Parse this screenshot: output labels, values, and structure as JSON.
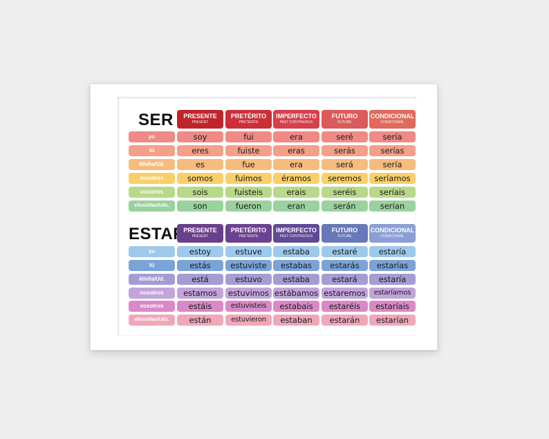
{
  "headers": [
    {
      "title": "PRESENTE",
      "sub": "PRESENT"
    },
    {
      "title": "PRETÉRITO",
      "sub": "PRETERITE"
    },
    {
      "title": "IMPERFECTO",
      "sub": "PAST CONTINUOUS"
    },
    {
      "title": "FUTURO",
      "sub": "FUTURE"
    },
    {
      "title": "CONDICIONAL",
      "sub": "CONDITIONAL"
    }
  ],
  "pronouns": [
    "yo",
    "tú",
    "él/ella/Ud.",
    "nosotros",
    "vosotros",
    "ellos/ellas/Uds."
  ],
  "ser": {
    "title": "SER",
    "header_colors": [
      "#c0242b",
      "#cc2f38",
      "#d7404a",
      "#dc5a5a",
      "#e06a5c"
    ],
    "row_colors": [
      "#ef8a86",
      "#f4a088",
      "#f7bb7e",
      "#f7d069",
      "#b7d98a",
      "#99d29c"
    ],
    "rows": [
      [
        "soy",
        "fui",
        "era",
        "seré",
        "sería"
      ],
      [
        "eres",
        "fuiste",
        "eras",
        "serás",
        "serías"
      ],
      [
        "es",
        "fue",
        "era",
        "será",
        "sería"
      ],
      [
        "somos",
        "fuimos",
        "éramos",
        "seremos",
        "seríamos"
      ],
      [
        "sois",
        "fuisteis",
        "erais",
        "seréis",
        "seríais"
      ],
      [
        "son",
        "fueron",
        "eran",
        "serán",
        "serían"
      ]
    ]
  },
  "estar": {
    "title": "ESTAR",
    "header_colors": [
      "#6a3f8c",
      "#6a4290",
      "#5e4a96",
      "#6878b8",
      "#8b9fd6"
    ],
    "row_colors": [
      "#9dc9ec",
      "#7aa4d6",
      "#a79bd3",
      "#c2a4da",
      "#d989c7",
      "#f0a7ba"
    ],
    "rows": [
      [
        "estoy",
        "estuve",
        "estaba",
        "estaré",
        "estaría"
      ],
      [
        "estás",
        "estuviste",
        "estabas",
        "estarás",
        "estarías"
      ],
      [
        "está",
        "estuvo",
        "estaba",
        "estará",
        "estaría"
      ],
      [
        "estamos",
        "estuvimos",
        "estábamos",
        "estaremos",
        "estaríamos"
      ],
      [
        "estáis",
        "estuvisteis",
        "estabais",
        "estaréis",
        "estaríais"
      ],
      [
        "están",
        "estuvieron",
        "estaban",
        "estarán",
        "estarían"
      ]
    ]
  }
}
